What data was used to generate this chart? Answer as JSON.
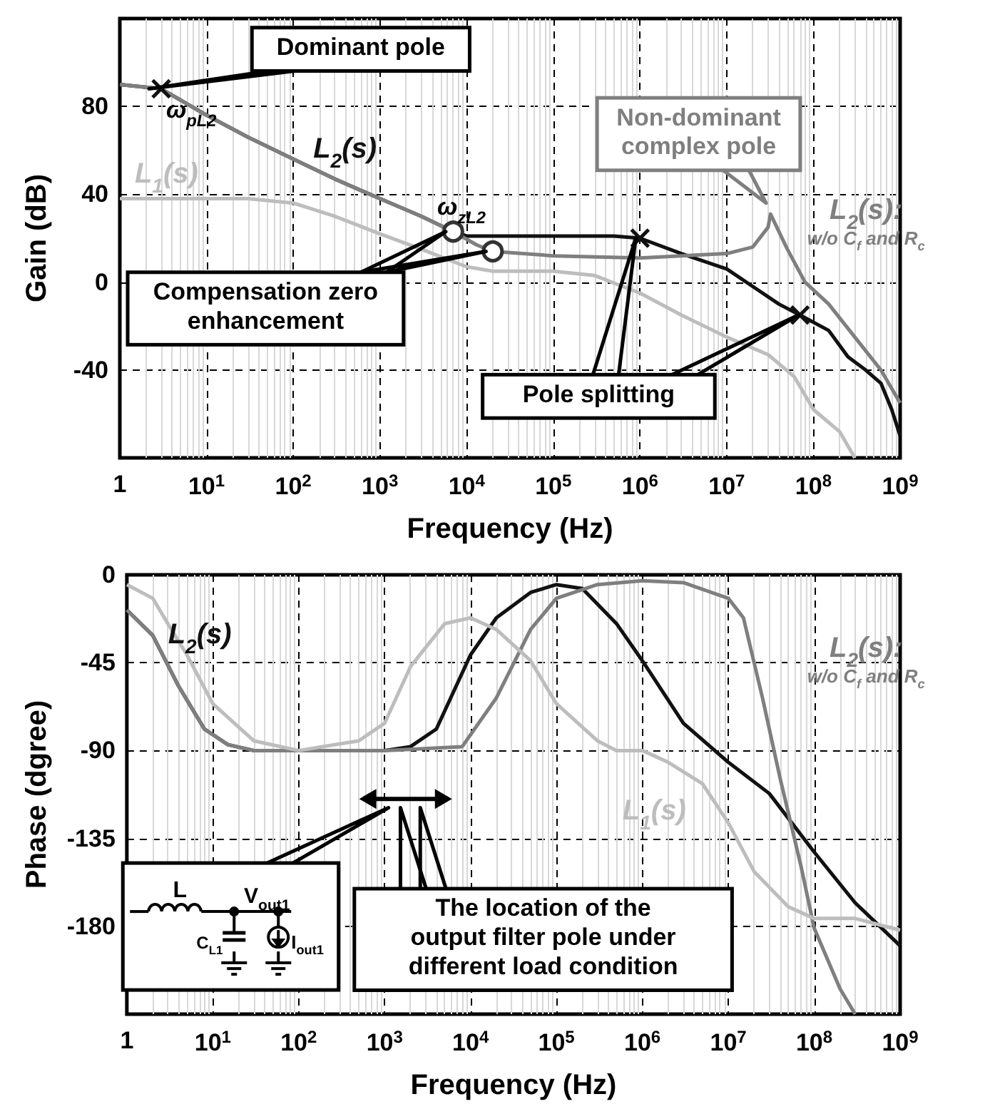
{
  "chart_data": [
    {
      "type": "line",
      "xlabel": "Frequency (Hz)",
      "ylabel": "Gain (dB)",
      "log": "x",
      "grid": true,
      "xlim": [
        1,
        1000000000
      ],
      "ylim": [
        -80,
        120
      ],
      "xticks": [
        1,
        {
          "value": 10,
          "label": "10$^{1}$"
        },
        {
          "value": 100,
          "label": "10$^{2}$"
        },
        {
          "value": 1000,
          "label": "10$^{3}$"
        },
        {
          "value": 10000,
          "label": "10$^{4}$"
        },
        {
          "value": 100000,
          "label": "10$^{5}$"
        },
        {
          "value": 1000000,
          "label": "10$^{6}$"
        },
        {
          "value": 10000000,
          "label": "10$^{7}$"
        },
        {
          "value": 100000000,
          "label": "10$^{8}$"
        },
        {
          "value": 1000000000,
          "label": "10$^{9}$"
        }
      ],
      "yticks": [
        -40,
        0,
        40,
        80
      ],
      "series": [
        {
          "name": "L$_{2}$(s)",
          "color": "#111111",
          "marker": "none",
          "x": [
            1,
            3,
            10,
            30,
            100,
            300,
            1000,
            3000,
            7000,
            10000,
            100000,
            500000,
            1000000,
            3000000,
            10000000,
            20000000,
            40000000,
            70000000,
            150000000,
            250000000,
            400000000,
            600000000,
            800000000,
            1000000000
          ],
          "values": [
            90,
            88,
            76,
            66,
            56,
            47,
            38,
            30,
            23,
            21,
            21,
            21,
            20,
            13,
            6,
            -2,
            -10,
            -15,
            -22,
            -34,
            -40,
            -46,
            -58,
            -70
          ]
        },
        {
          "name": "L$_{2}$(s):\nw/o C$_{f}$ and R$_{c}$",
          "color": "#7f7f7f",
          "marker": "none",
          "x": [
            1,
            3,
            10,
            30,
            100,
            300,
            1000,
            3000,
            7000,
            13000,
            20000,
            100000,
            1000000,
            3000000,
            10000000,
            20000000,
            30000000,
            32000000,
            50000000,
            80000000,
            150000000,
            300000000,
            600000000,
            1000000000
          ],
          "values": [
            90,
            88,
            76,
            66,
            56,
            47,
            38,
            30,
            23,
            17,
            14,
            12,
            11,
            12,
            13,
            16,
            25,
            31,
            15,
            0,
            -10,
            -25,
            -40,
            -55
          ]
        },
        {
          "name": "L$_{1}$(s)",
          "color": "#bdbdbd",
          "marker": "none",
          "x": [
            1,
            30,
            100,
            300,
            1000,
            3000,
            10000,
            20000,
            100000,
            300000,
            1000000,
            3000000,
            10000000,
            30000000,
            60000000,
            100000000,
            200000000,
            300000000
          ],
          "values": [
            38,
            38,
            36,
            30,
            22,
            15,
            7,
            5,
            5,
            3,
            -5,
            -15,
            -25,
            -33,
            -43,
            -58,
            -68,
            -80
          ]
        },
        {
          "type": "scatter",
          "color": "#111111",
          "marker": "cross",
          "x": [
            3,
            1000000,
            70000000
          ],
          "values": [
            88,
            20,
            -15
          ]
        },
        {
          "type": "scatter",
          "color": "#333333",
          "marker": "circle",
          "x": [
            7000,
            20000
          ],
          "values": [
            23,
            14
          ]
        }
      ],
      "annotations": [
        "Dominant pole",
        {
          "text": "ω$_{pL2}$",
          "x": 3,
          "y": 88
        },
        {
          "text": "ω$_{zL2}$",
          "x": 7000,
          "y": 23
        },
        "Compensation zero\nenhancement",
        "Pole splitting",
        "Non-dominant\ncomplex pole"
      ]
    },
    {
      "type": "line",
      "xlabel": "Frequency (Hz)",
      "ylabel": "Phase (dgree)",
      "log": "x",
      "grid": true,
      "xlim": [
        1,
        1000000000
      ],
      "ylim": [
        -225,
        0
      ],
      "xticks": [
        1,
        {
          "value": 10,
          "label": "10$^{1}$"
        },
        {
          "value": 100,
          "label": "10$^{2}$"
        },
        {
          "value": 1000,
          "label": "10$^{3}$"
        },
        {
          "value": 10000,
          "label": "10$^{4}$"
        },
        {
          "value": 100000,
          "label": "10$^{5}$"
        },
        {
          "value": 1000000,
          "label": "10$^{6}$"
        },
        {
          "value": 10000000,
          "label": "10$^{7}$"
        },
        {
          "value": 100000000,
          "label": "10$^{8}$"
        },
        {
          "value": 1000000000,
          "label": "10$^{9}$"
        }
      ],
      "yticks": [
        -180,
        -135,
        -90,
        -45,
        0
      ],
      "series": [
        {
          "name": "L$_{2}$(s)",
          "color": "#111111",
          "marker": "none",
          "x": [
            1,
            2,
            4,
            8,
            15,
            30,
            1000,
            2000,
            4000,
            10000,
            20000,
            50000,
            100000,
            200000,
            500000,
            1000000,
            3000000,
            10000000,
            30000000,
            100000000,
            300000000,
            1000000000
          ],
          "values": [
            -18,
            -31,
            -57,
            -79,
            -87,
            -90,
            -90,
            -88,
            -79,
            -41,
            -22,
            -9,
            -5,
            -7,
            -25,
            -44,
            -76,
            -96,
            -112,
            -142,
            -168,
            -190
          ]
        },
        {
          "name": "L$_{2}$(s):\nw/o C$_{f}$ and R$_{c}$",
          "color": "#7f7f7f",
          "marker": "none",
          "x": [
            1,
            2,
            4,
            8,
            15,
            30,
            1000,
            8000,
            20000,
            50000,
            100000,
            300000,
            1000000,
            3000000,
            10000000,
            15000000,
            25000000,
            40000000,
            70000000,
            100000000,
            200000000,
            300000000
          ],
          "values": [
            -18,
            -31,
            -57,
            -79,
            -87,
            -90,
            -90,
            -88,
            -63,
            -28,
            -12,
            -5,
            -3,
            -4,
            -12,
            -22,
            -63,
            -104,
            -149,
            -181,
            -212,
            -225
          ]
        },
        {
          "name": "L$_{1}$(s)",
          "color": "#bdbdbd",
          "marker": "none",
          "x": [
            1,
            2,
            3,
            5,
            10,
            30,
            100,
            500,
            1000,
            2000,
            5000,
            10000,
            20000,
            50000,
            100000,
            300000,
            500000,
            1000000,
            2000000,
            5000000,
            10000000,
            20000000,
            50000000,
            100000000,
            300000000,
            1000000000
          ],
          "values": [
            -5,
            -12,
            -25,
            -41,
            -66,
            -85,
            -90,
            -85,
            -76,
            -47,
            -25,
            -22,
            -28,
            -44,
            -66,
            -85,
            -90,
            -90,
            -96,
            -107,
            -127,
            -152,
            -170,
            -176,
            -176,
            -182
          ]
        }
      ],
      "annotations": [
        "The location of the\noutput filter pole under\ndifferent load condition",
        "L",
        "V$_{out1}$",
        "C$_{L1}$",
        "I$_{out1}$"
      ]
    }
  ]
}
